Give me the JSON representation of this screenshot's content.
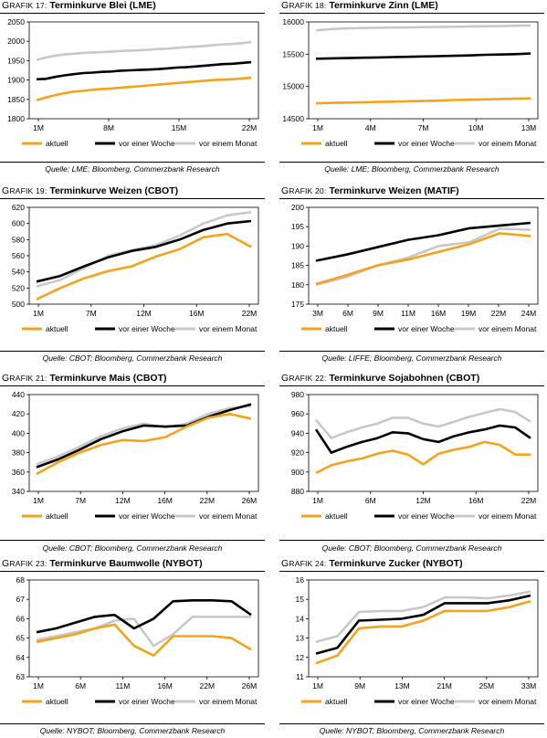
{
  "colors": {
    "aktuell": "#f7a21b",
    "vor_einer_woche": "#000000",
    "vor_einem_monat": "#c8c8c8"
  },
  "legend": [
    "aktuell",
    "vor einer Woche",
    "vor einem Monat"
  ],
  "panels": [
    {
      "grafik": "Grafik 17:",
      "title": "Terminkurve Blei (LME)",
      "source": "Quelle: LME; Bloomberg, Commerzbank Research"
    },
    {
      "grafik": "Grafik 18:",
      "title": "Terminkurve Zinn (LME)",
      "source": "Quelle: LME; Bloomberg, Commerzbank Research"
    },
    {
      "grafik": "Grafik 19:",
      "title": "Terminkurve Weizen (CBOT)",
      "source": "Quelle: CBOT; Bloomberg, Commerzbank Research"
    },
    {
      "grafik": "Grafik 20:",
      "title": "Terminkurve Weizen (MATIF)",
      "source": "Quelle: LIFFE; Bloomberg, Commerzbank Research"
    },
    {
      "grafik": "Grafik 21:",
      "title": "Terminkurve Mais (CBOT)",
      "source": "Quelle: CBOT; Bloomberg, Commerzbank Research"
    },
    {
      "grafik": "Grafik 22:",
      "title": "Terminkurve Sojabohnen (CBOT)",
      "source": "Quelle: CBOT; Bloomberg, Commerzbank Research"
    },
    {
      "grafik": "Grafik 23:",
      "title": "Terminkurve Baumwolle (NYBOT)",
      "source": "Quelle: NYBOT; Bloomberg, Commerzbank Research"
    },
    {
      "grafik": "Grafik 24:",
      "title": "Terminkurve Zucker (NYBOT)",
      "source": "Quelle: NYBOT; Bloomberg, Commerzbank Research"
    }
  ],
  "chart_data": [
    {
      "type": "line",
      "title": "Terminkurve Blei (LME)",
      "xticks": [
        "1M",
        "8M",
        "15M",
        "22M"
      ],
      "yticks": [
        1800,
        1850,
        1900,
        1950,
        2000,
        2050
      ],
      "ylim": [
        1800,
        2050
      ],
      "series": [
        {
          "name": "aktuell",
          "values": [
            1848,
            1855,
            1861,
            1866,
            1870,
            1872,
            1875,
            1877,
            1878,
            1880,
            1882,
            1884,
            1886,
            1888,
            1890,
            1892,
            1894,
            1896,
            1898,
            1900,
            1901,
            1902,
            1904,
            1906
          ]
        },
        {
          "name": "vor einer Woche",
          "values": [
            1902,
            1903,
            1908,
            1912,
            1915,
            1918,
            1919,
            1921,
            1922,
            1924,
            1925,
            1926,
            1927,
            1928,
            1930,
            1932,
            1933,
            1935,
            1937,
            1939,
            1941,
            1942,
            1944,
            1946
          ]
        },
        {
          "name": "vor einem Monat",
          "values": [
            1952,
            1958,
            1963,
            1966,
            1968,
            1970,
            1971,
            1972,
            1973,
            1975,
            1976,
            1977,
            1978,
            1980,
            1981,
            1983,
            1985,
            1986,
            1988,
            1990,
            1992,
            1993,
            1995,
            1998
          ]
        }
      ]
    },
    {
      "type": "line",
      "title": "Terminkurve Zinn (LME)",
      "xticks": [
        "1M",
        "4M",
        "7M",
        "10M",
        "13M"
      ],
      "yticks": [
        14500,
        15000,
        15500,
        16000
      ],
      "ylim": [
        14500,
        16000
      ],
      "series": [
        {
          "name": "aktuell",
          "values": [
            14740,
            14745,
            14750,
            14755,
            14760,
            14765,
            14770,
            14775,
            14780,
            14790,
            14795,
            14800,
            14805,
            14810,
            14815
          ]
        },
        {
          "name": "vor einer Woche",
          "values": [
            15430,
            15435,
            15440,
            15445,
            15450,
            15455,
            15460,
            15465,
            15470,
            15475,
            15480,
            15490,
            15495,
            15500,
            15510
          ]
        },
        {
          "name": "vor einem Monat",
          "values": [
            15870,
            15890,
            15900,
            15905,
            15910,
            15912,
            15915,
            15920,
            15922,
            15925,
            15930,
            15932,
            15935,
            15940,
            15945
          ]
        }
      ]
    },
    {
      "type": "line",
      "title": "Terminkurve Weizen (CBOT)",
      "xticks": [
        "1M",
        "7M",
        "12M",
        "16M",
        "22M"
      ],
      "yticks": [
        500,
        520,
        540,
        560,
        580,
        600,
        620
      ],
      "ylim": [
        500,
        620
      ],
      "series": [
        {
          "name": "aktuell",
          "values": [
            506,
            520,
            532,
            541,
            547,
            559,
            568,
            583,
            587,
            571
          ]
        },
        {
          "name": "vor einer Woche",
          "values": [
            528,
            535,
            547,
            558,
            566,
            571,
            580,
            592,
            600,
            603
          ]
        },
        {
          "name": "vor einem Monat",
          "values": [
            522,
            530,
            545,
            560,
            567,
            573,
            585,
            600,
            610,
            614
          ]
        }
      ]
    },
    {
      "type": "line",
      "title": "Terminkurve Weizen (MATIF)",
      "xticks": [
        "3M",
        "6M",
        "9M",
        "11M",
        "16M",
        "19M",
        "22M",
        "24M"
      ],
      "yticks": [
        175,
        180,
        185,
        190,
        195,
        200
      ],
      "ylim": [
        175,
        200
      ],
      "series": [
        {
          "name": "aktuell",
          "values": [
            180.2,
            182.5,
            185.0,
            186.5,
            188.5,
            190.5,
            193.3,
            192.6
          ]
        },
        {
          "name": "vor einer Woche",
          "values": [
            186.2,
            187.8,
            189.7,
            191.6,
            192.8,
            194.6,
            195.3,
            196.0
          ]
        },
        {
          "name": "vor einem Monat",
          "values": [
            180.0,
            182.0,
            185.0,
            187.0,
            190.0,
            191.0,
            194.5,
            194.2
          ]
        }
      ]
    },
    {
      "type": "line",
      "title": "Terminkurve Mais (CBOT)",
      "xticks": [
        "1M",
        "7M",
        "12M",
        "16M",
        "22M",
        "26M"
      ],
      "yticks": [
        340,
        360,
        380,
        400,
        420,
        440
      ],
      "ylim": [
        340,
        440
      ],
      "series": [
        {
          "name": "aktuell",
          "values": [
            358,
            370,
            380,
            388,
            393,
            392,
            396,
            407,
            416,
            420,
            415
          ]
        },
        {
          "name": "vor einer Woche",
          "values": [
            365,
            373,
            383,
            394,
            402,
            408,
            407,
            408,
            417,
            424,
            430
          ]
        },
        {
          "name": "vor einem Monat",
          "values": [
            368,
            376,
            386,
            397,
            405,
            410,
            406,
            410,
            420,
            426,
            428
          ]
        }
      ]
    },
    {
      "type": "line",
      "title": "Terminkurve Sojabohnen (CBOT)",
      "xticks": [
        "1M",
        "6M",
        "12M",
        "16M",
        "22M"
      ],
      "yticks": [
        880,
        900,
        920,
        940,
        960,
        980
      ],
      "ylim": [
        880,
        980
      ],
      "series": [
        {
          "name": "aktuell",
          "values": [
            899,
            907,
            911,
            914,
            919,
            922,
            918,
            908,
            919,
            923,
            926,
            931,
            928,
            918,
            918
          ]
        },
        {
          "name": "vor einer Woche",
          "values": [
            944,
            920,
            926,
            931,
            935,
            941,
            940,
            934,
            931,
            937,
            941,
            944,
            948,
            946,
            935
          ]
        },
        {
          "name": "vor einem Monat",
          "values": [
            954,
            935,
            941,
            946,
            950,
            956,
            956,
            950,
            947,
            952,
            957,
            961,
            965,
            962,
            952
          ]
        }
      ]
    },
    {
      "type": "line",
      "title": "Terminkurve Baumwolle (NYBOT)",
      "xticks": [
        "1M",
        "6M",
        "11M",
        "16M",
        "22M",
        "26M"
      ],
      "yticks": [
        63,
        64,
        65,
        66,
        67,
        68
      ],
      "ylim": [
        63,
        68
      ],
      "series": [
        {
          "name": "aktuell",
          "values": [
            64.8,
            65.0,
            65.2,
            65.5,
            65.7,
            64.6,
            64.1,
            65.1,
            65.1,
            65.1,
            65.0,
            64.4
          ]
        },
        {
          "name": "vor einer Woche",
          "values": [
            65.3,
            65.5,
            65.8,
            66.1,
            66.2,
            65.5,
            66.0,
            66.9,
            66.95,
            66.95,
            66.9,
            66.2
          ]
        },
        {
          "name": "vor einem Monat",
          "values": [
            64.9,
            65.1,
            65.3,
            65.5,
            65.9,
            66.0,
            64.6,
            65.2,
            66.1,
            66.1,
            66.1,
            66.1
          ]
        }
      ]
    },
    {
      "type": "line",
      "title": "Terminkurve Zucker (NYBOT)",
      "xticks": [
        "1M",
        "9M",
        "13M",
        "21M",
        "25M",
        "33M"
      ],
      "yticks": [
        11.0,
        12.0,
        13.0,
        14.0,
        15.0,
        16.0
      ],
      "ylim": [
        11.0,
        16.0
      ],
      "series": [
        {
          "name": "aktuell",
          "values": [
            11.7,
            12.1,
            13.5,
            13.6,
            13.6,
            13.9,
            14.4,
            14.4,
            14.4,
            14.6,
            14.9
          ]
        },
        {
          "name": "vor einer Woche",
          "values": [
            12.2,
            12.5,
            13.9,
            13.95,
            14.0,
            14.2,
            14.8,
            14.8,
            14.8,
            14.95,
            15.2
          ]
        },
        {
          "name": "vor einem Monat",
          "values": [
            12.8,
            13.1,
            14.35,
            14.4,
            14.4,
            14.6,
            15.1,
            15.1,
            15.05,
            15.2,
            15.4
          ]
        }
      ]
    }
  ]
}
